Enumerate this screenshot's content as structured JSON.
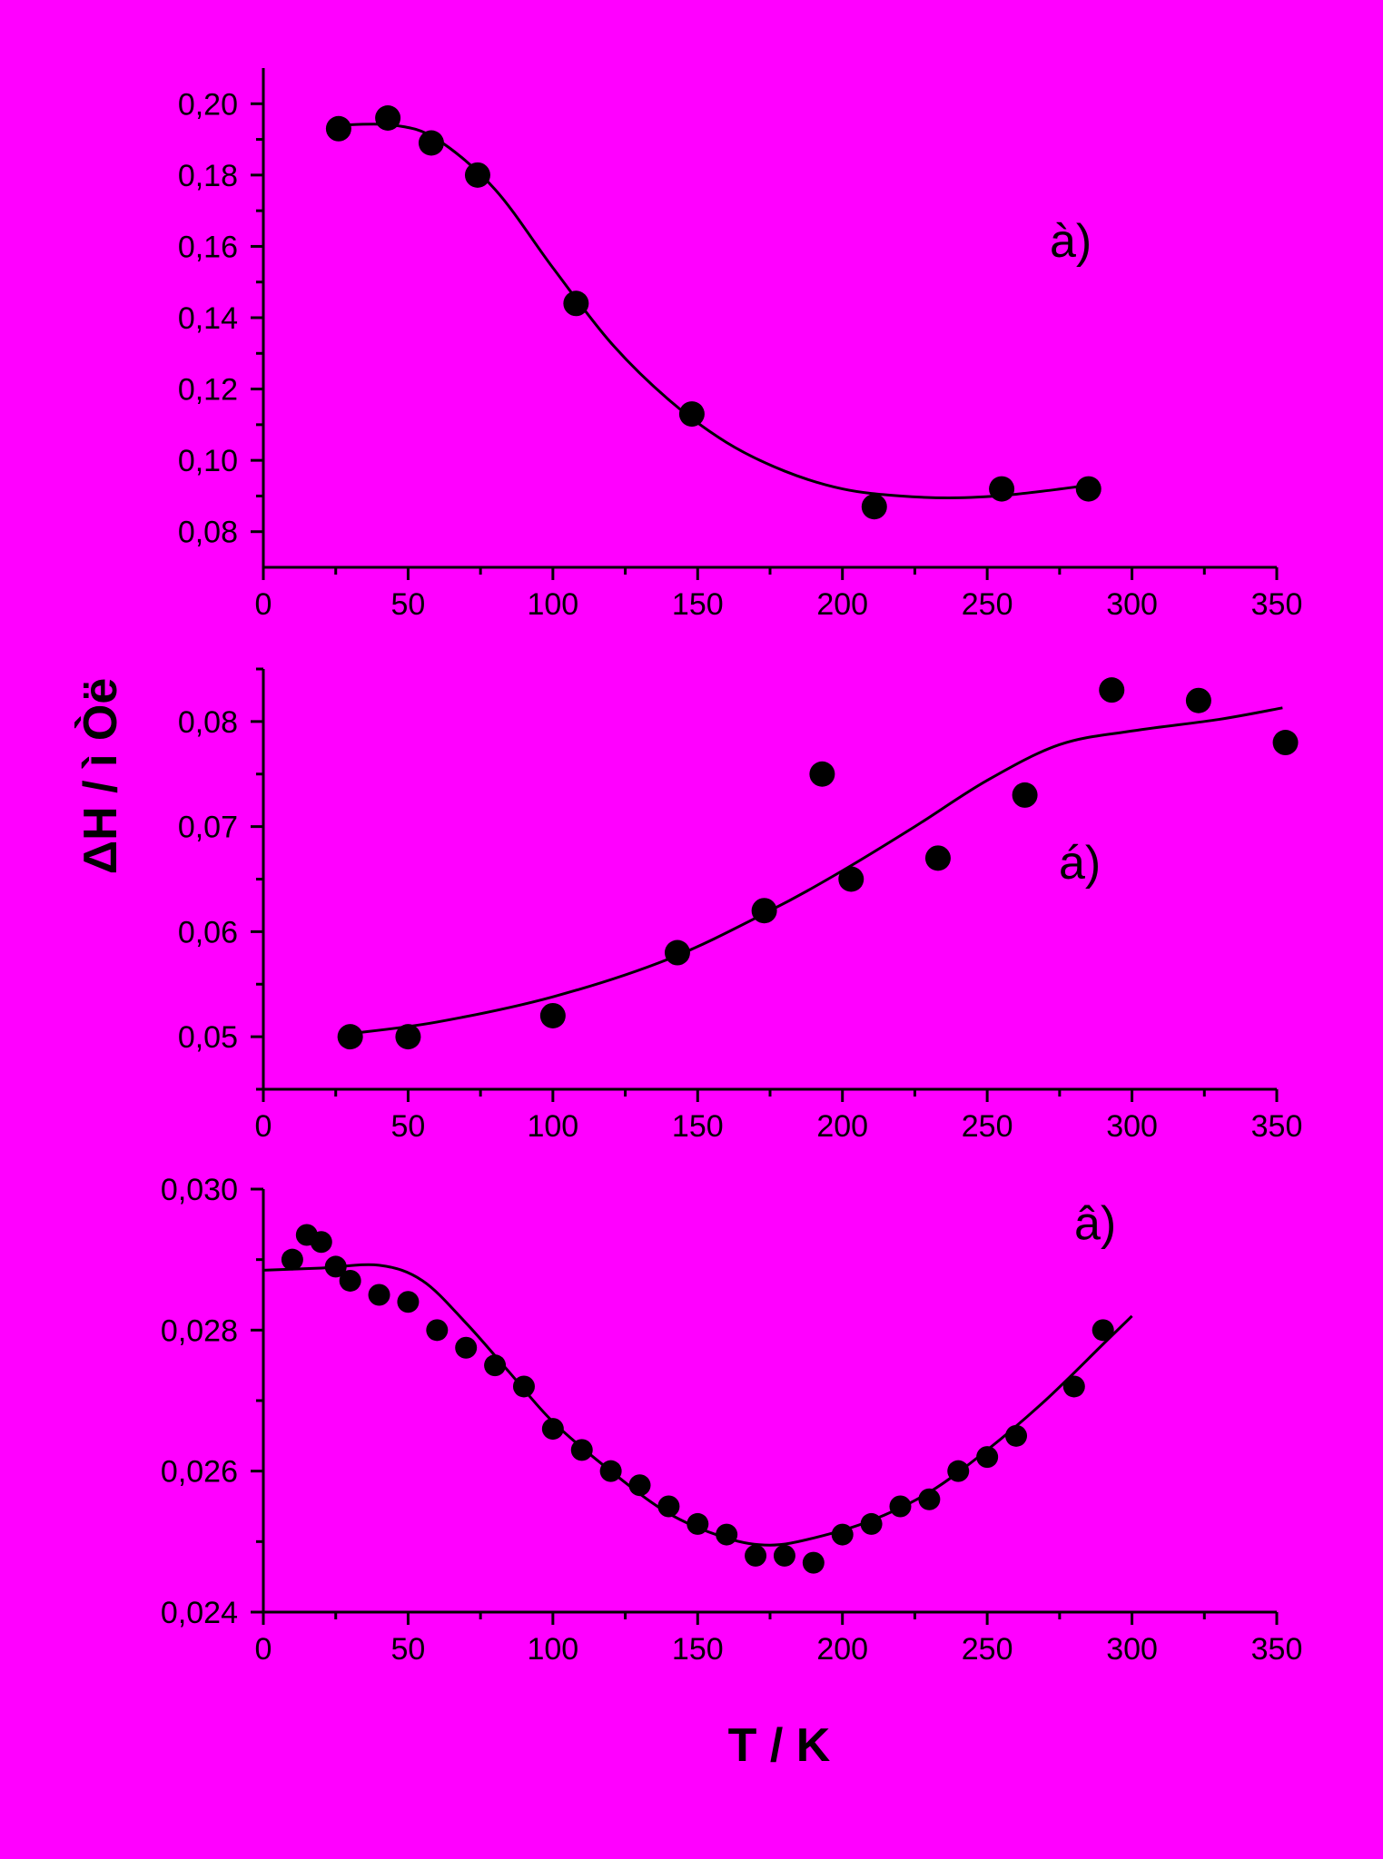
{
  "figure": {
    "ylabel": "ΔH / ì Òë",
    "xlabel": "T / K",
    "background": "#FF00FF",
    "ink": "#000000"
  },
  "chart_data": [
    {
      "type": "scatter",
      "panel_label": "à)",
      "xlim": [
        0,
        350
      ],
      "ylim": [
        0.07,
        0.21
      ],
      "x_ticks": [
        0,
        50,
        100,
        150,
        200,
        250,
        300,
        350
      ],
      "x_tick_labels": [
        "0",
        "50",
        "100",
        "150",
        "200",
        "250",
        "300",
        "350"
      ],
      "y_ticks": [
        0.08,
        0.1,
        0.12,
        0.14,
        0.16,
        0.18,
        0.2
      ],
      "y_tick_labels": [
        "0,08",
        "0,10",
        "0,12",
        "0,14",
        "0,16",
        "0,18",
        "0,20"
      ],
      "points": [
        {
          "x": 26,
          "y": 0.193
        },
        {
          "x": 43,
          "y": 0.196
        },
        {
          "x": 58,
          "y": 0.189
        },
        {
          "x": 74,
          "y": 0.18
        },
        {
          "x": 108,
          "y": 0.144
        },
        {
          "x": 148,
          "y": 0.113
        },
        {
          "x": 211,
          "y": 0.087
        },
        {
          "x": 255,
          "y": 0.092
        },
        {
          "x": 285,
          "y": 0.092
        }
      ],
      "fit": [
        {
          "x": 26,
          "y": 0.194
        },
        {
          "x": 45,
          "y": 0.194
        },
        {
          "x": 60,
          "y": 0.19
        },
        {
          "x": 80,
          "y": 0.176
        },
        {
          "x": 100,
          "y": 0.154
        },
        {
          "x": 120,
          "y": 0.133
        },
        {
          "x": 140,
          "y": 0.117
        },
        {
          "x": 160,
          "y": 0.105
        },
        {
          "x": 180,
          "y": 0.097
        },
        {
          "x": 200,
          "y": 0.092
        },
        {
          "x": 220,
          "y": 0.09
        },
        {
          "x": 240,
          "y": 0.0895
        },
        {
          "x": 260,
          "y": 0.0905
        },
        {
          "x": 285,
          "y": 0.093
        }
      ]
    },
    {
      "type": "scatter",
      "panel_label": "á)",
      "xlim": [
        0,
        350
      ],
      "ylim": [
        0.045,
        0.085
      ],
      "x_ticks": [
        0,
        50,
        100,
        150,
        200,
        250,
        300,
        350
      ],
      "x_tick_labels": [
        "0",
        "50",
        "100",
        "150",
        "200",
        "250",
        "300",
        "350"
      ],
      "y_ticks": [
        0.05,
        0.06,
        0.07,
        0.08
      ],
      "y_tick_labels": [
        "0,05",
        "0,06",
        "0,07",
        "0,08"
      ],
      "points": [
        {
          "x": 30,
          "y": 0.05
        },
        {
          "x": 50,
          "y": 0.05
        },
        {
          "x": 100,
          "y": 0.052
        },
        {
          "x": 143,
          "y": 0.058
        },
        {
          "x": 173,
          "y": 0.062
        },
        {
          "x": 193,
          "y": 0.075
        },
        {
          "x": 203,
          "y": 0.065
        },
        {
          "x": 233,
          "y": 0.067
        },
        {
          "x": 263,
          "y": 0.073
        },
        {
          "x": 293,
          "y": 0.083
        },
        {
          "x": 323,
          "y": 0.082
        },
        {
          "x": 353,
          "y": 0.078
        }
      ],
      "fit": [
        {
          "x": 30,
          "y": 0.0503
        },
        {
          "x": 60,
          "y": 0.0514
        },
        {
          "x": 100,
          "y": 0.0538
        },
        {
          "x": 140,
          "y": 0.0574
        },
        {
          "x": 175,
          "y": 0.062
        },
        {
          "x": 200,
          "y": 0.0658
        },
        {
          "x": 225,
          "y": 0.07
        },
        {
          "x": 250,
          "y": 0.0744
        },
        {
          "x": 275,
          "y": 0.0778
        },
        {
          "x": 300,
          "y": 0.0791
        },
        {
          "x": 330,
          "y": 0.0802
        },
        {
          "x": 352,
          "y": 0.0813
        }
      ]
    },
    {
      "type": "scatter",
      "panel_label": "â)",
      "xlim": [
        0,
        350
      ],
      "ylim": [
        0.024,
        0.03
      ],
      "x_ticks": [
        0,
        50,
        100,
        150,
        200,
        250,
        300,
        350
      ],
      "x_tick_labels": [
        "0",
        "50",
        "100",
        "150",
        "200",
        "250",
        "300",
        "350"
      ],
      "y_ticks": [
        0.024,
        0.026,
        0.028,
        0.03
      ],
      "y_tick_labels": [
        "0,024",
        "0,026",
        "0,028",
        "0,030"
      ],
      "points": [
        {
          "x": 10,
          "y": 0.029
        },
        {
          "x": 15,
          "y": 0.02935
        },
        {
          "x": 20,
          "y": 0.02925
        },
        {
          "x": 25,
          "y": 0.0289
        },
        {
          "x": 30,
          "y": 0.0287
        },
        {
          "x": 40,
          "y": 0.0285
        },
        {
          "x": 50,
          "y": 0.0284
        },
        {
          "x": 60,
          "y": 0.028
        },
        {
          "x": 70,
          "y": 0.02775
        },
        {
          "x": 80,
          "y": 0.0275
        },
        {
          "x": 90,
          "y": 0.0272
        },
        {
          "x": 100,
          "y": 0.0266
        },
        {
          "x": 110,
          "y": 0.0263
        },
        {
          "x": 120,
          "y": 0.026
        },
        {
          "x": 130,
          "y": 0.0258
        },
        {
          "x": 140,
          "y": 0.0255
        },
        {
          "x": 150,
          "y": 0.02525
        },
        {
          "x": 160,
          "y": 0.0251
        },
        {
          "x": 170,
          "y": 0.0248
        },
        {
          "x": 180,
          "y": 0.0248
        },
        {
          "x": 190,
          "y": 0.0247
        },
        {
          "x": 200,
          "y": 0.0251
        },
        {
          "x": 210,
          "y": 0.02525
        },
        {
          "x": 220,
          "y": 0.0255
        },
        {
          "x": 230,
          "y": 0.0256
        },
        {
          "x": 240,
          "y": 0.026
        },
        {
          "x": 250,
          "y": 0.0262
        },
        {
          "x": 260,
          "y": 0.0265
        },
        {
          "x": 280,
          "y": 0.0272
        },
        {
          "x": 290,
          "y": 0.028
        }
      ],
      "fit": [
        {
          "x": 0,
          "y": 0.02885
        },
        {
          "x": 20,
          "y": 0.02888
        },
        {
          "x": 40,
          "y": 0.02892
        },
        {
          "x": 55,
          "y": 0.0287
        },
        {
          "x": 70,
          "y": 0.0281
        },
        {
          "x": 85,
          "y": 0.0274
        },
        {
          "x": 100,
          "y": 0.0267
        },
        {
          "x": 120,
          "y": 0.026
        },
        {
          "x": 140,
          "y": 0.0254
        },
        {
          "x": 160,
          "y": 0.02505
        },
        {
          "x": 175,
          "y": 0.02495
        },
        {
          "x": 190,
          "y": 0.02505
        },
        {
          "x": 210,
          "y": 0.0253
        },
        {
          "x": 230,
          "y": 0.0257
        },
        {
          "x": 250,
          "y": 0.0263
        },
        {
          "x": 270,
          "y": 0.027
        },
        {
          "x": 290,
          "y": 0.0278
        },
        {
          "x": 300,
          "y": 0.0282
        }
      ]
    }
  ]
}
